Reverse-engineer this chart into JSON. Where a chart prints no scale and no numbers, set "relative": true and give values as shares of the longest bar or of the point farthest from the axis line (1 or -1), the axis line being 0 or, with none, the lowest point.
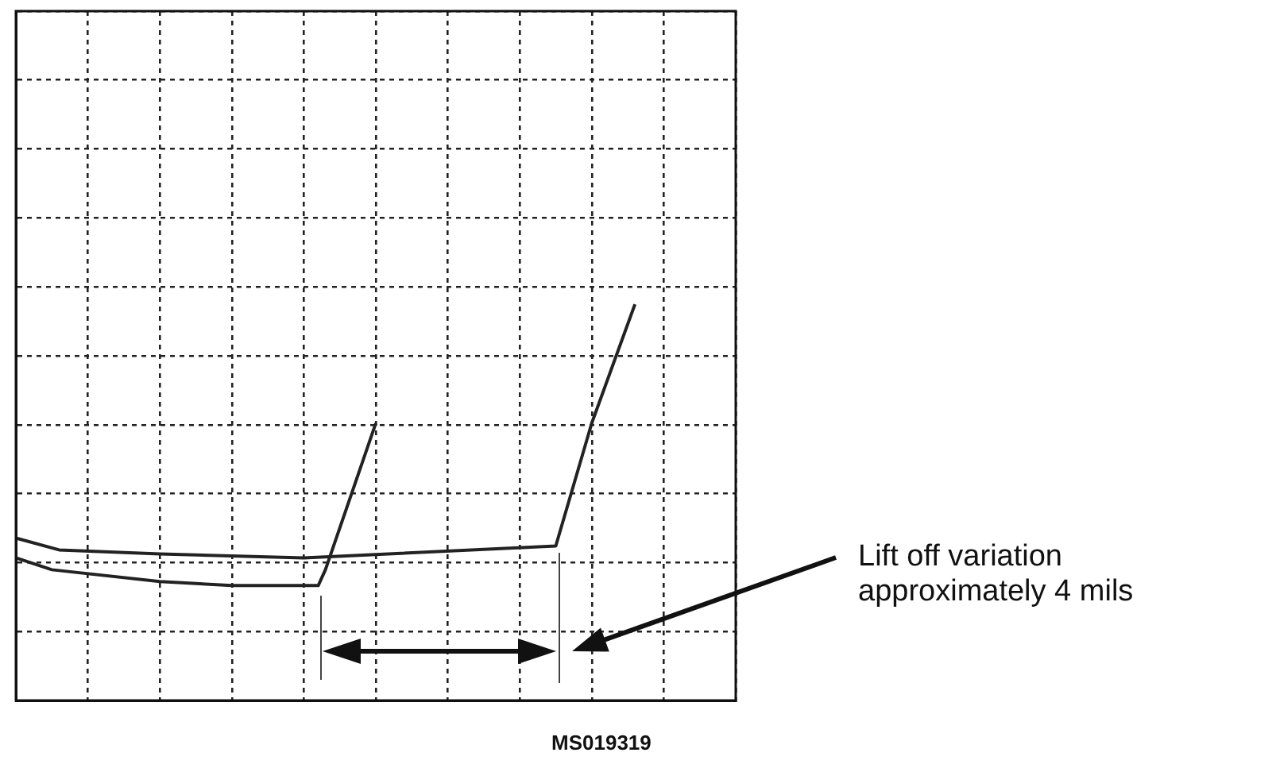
{
  "chart_data": {
    "type": "line",
    "relative": true,
    "categories": [
      null,
      null,
      null,
      null,
      null,
      null,
      null,
      null,
      null,
      null,
      null,
      null,
      null,
      null,
      null,
      null,
      null,
      null,
      null,
      null,
      null,
      null,
      null,
      null,
      null,
      null,
      null,
      null,
      null,
      null,
      null,
      null,
      null,
      null,
      null,
      null,
      null,
      null,
      null,
      null,
      null,
      null,
      null,
      null,
      null,
      null,
      null,
      null,
      null,
      null,
      null,
      null,
      null,
      null,
      null,
      null,
      null,
      null,
      null,
      null,
      null,
      null,
      null,
      null,
      null,
      null,
      null,
      null,
      null,
      null,
      null,
      null,
      null,
      null,
      null,
      null,
      null,
      null,
      null,
      null,
      null,
      null,
      null,
      null,
      null,
      null,
      null,
      null,
      null,
      null,
      null,
      null,
      null,
      null,
      null,
      null,
      null,
      null,
      null,
      null,
      null
    ],
    "series": [
      {
        "color": "#222222",
        "values": [
          0.36,
          null,
          null,
          null,
          null,
          0.33,
          null,
          null,
          null,
          null,
          null,
          null,
          null,
          null,
          null,
          null,
          null,
          null,
          null,
          null,
          0.3,
          null,
          null,
          null,
          null,
          null,
          null,
          null,
          null,
          null,
          0.29,
          null,
          null,
          null,
          null,
          null,
          null,
          null,
          null,
          null,
          null,
          null,
          0.29,
          0.33,
          null,
          null,
          null,
          null,
          null,
          null,
          0.7,
          null,
          null,
          null,
          null,
          null,
          null,
          null,
          null,
          null,
          null,
          null,
          null,
          null,
          null,
          null,
          null,
          null,
          null,
          null,
          null,
          null,
          null,
          null,
          null,
          null,
          null,
          null,
          null,
          null,
          null,
          null,
          null,
          null,
          null,
          null,
          null,
          null,
          null,
          null,
          null,
          null,
          null,
          null,
          null,
          null,
          null,
          null,
          null,
          null,
          null
        ]
      },
      {
        "color": "#222222",
        "values": [
          0.41,
          null,
          null,
          null,
          null,
          null,
          0.38,
          null,
          null,
          null,
          null,
          null,
          null,
          null,
          null,
          null,
          null,
          null,
          null,
          null,
          0.37,
          null,
          null,
          null,
          null,
          null,
          null,
          null,
          null,
          null,
          null,
          null,
          null,
          null,
          null,
          null,
          null,
          null,
          null,
          null,
          0.36,
          null,
          null,
          null,
          null,
          null,
          null,
          null,
          null,
          null,
          null,
          null,
          null,
          null,
          null,
          null,
          null,
          null,
          null,
          null,
          null,
          null,
          null,
          null,
          null,
          null,
          null,
          null,
          null,
          null,
          null,
          null,
          null,
          null,
          null,
          0.39,
          null,
          null,
          null,
          null,
          0.7,
          null,
          null,
          null,
          null,
          null,
          1,
          null,
          null,
          null,
          null,
          null,
          null,
          null,
          null,
          null,
          null,
          null,
          null,
          null,
          null
        ]
      }
    ],
    "annotations": [
      "Lift off variation approximately 4 mils",
      "MS019319"
    ],
    "grid": true,
    "marker": "none",
    "line_style": "solid",
    "legend": false
  }
}
